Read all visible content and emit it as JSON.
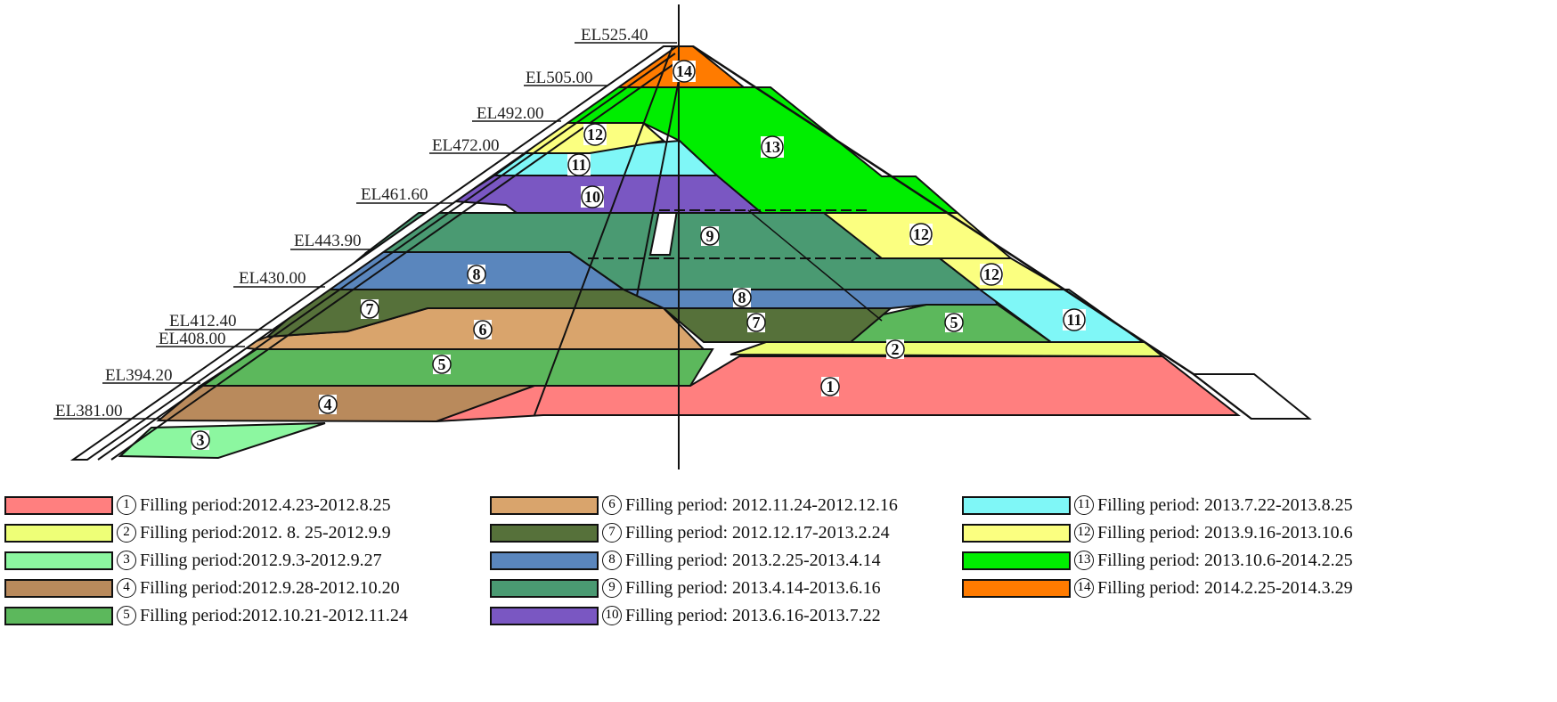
{
  "elevations": [
    "EL525.40",
    "EL505.00",
    "EL492.00",
    "EL472.00",
    "EL461.60",
    "EL443.90",
    "EL430.00",
    "EL412.40",
    "EL408.00",
    "EL394.20",
    "EL381.00"
  ],
  "zone_numbers": [
    "1",
    "2",
    "3",
    "4",
    "5",
    "6",
    "7",
    "8",
    "9",
    "10",
    "11",
    "12",
    "12",
    "12",
    "13",
    "14",
    "5",
    "7",
    "8"
  ],
  "colors": {
    "z1": "#ff7f7f",
    "z2": "#eeff77",
    "z3": "#8cf7a0",
    "z4": "#b98a5c",
    "z5": "#5cb85c",
    "z6": "#d9a46c",
    "z7": "#56713a",
    "z8": "#5a86bd",
    "z9": "#4a9a72",
    "z10": "#7a57c2",
    "z11": "#7ff7f7",
    "z12": "#fbff80",
    "z13": "#00ee00",
    "z14": "#ff7b00"
  },
  "legend": [
    {
      "num": "1",
      "color": "#ff7f7f",
      "text": "Filling period:2012.4.23-2012.8.25"
    },
    {
      "num": "2",
      "color": "#eeff77",
      "text": "Filling period:2012. 8. 25-2012.9.9"
    },
    {
      "num": "3",
      "color": "#8cf7a0",
      "text": "Filling period:2012.9.3-2012.9.27"
    },
    {
      "num": "4",
      "color": "#b98a5c",
      "text": "Filling period:2012.9.28-2012.10.20"
    },
    {
      "num": "5",
      "color": "#5cb85c",
      "text": "Filling period:2012.10.21-2012.11.24"
    },
    {
      "num": "6",
      "color": "#d9a46c",
      "text": "Filling period: 2012.11.24-2012.12.16"
    },
    {
      "num": "7",
      "color": "#56713a",
      "text": "Filling period: 2012.12.17-2013.2.24"
    },
    {
      "num": "8",
      "color": "#5a86bd",
      "text": "Filling period: 2013.2.25-2013.4.14"
    },
    {
      "num": "9",
      "color": "#4a9a72",
      "text": "Filling period: 2013.4.14-2013.6.16"
    },
    {
      "num": "10",
      "color": "#7a57c2",
      "text": "Filling period: 2013.6.16-2013.7.22"
    },
    {
      "num": "11",
      "color": "#7ff7f7",
      "text": "Filling period: 2013.7.22-2013.8.25"
    },
    {
      "num": "12",
      "color": "#fbff80",
      "text": "Filling period: 2013.9.16-2013.10.6"
    },
    {
      "num": "13",
      "color": "#00ee00",
      "text": "Filling period: 2013.10.6-2014.2.25"
    },
    {
      "num": "14",
      "color": "#ff7b00",
      "text": "Filling period: 2014.2.25-2014.3.29"
    }
  ]
}
